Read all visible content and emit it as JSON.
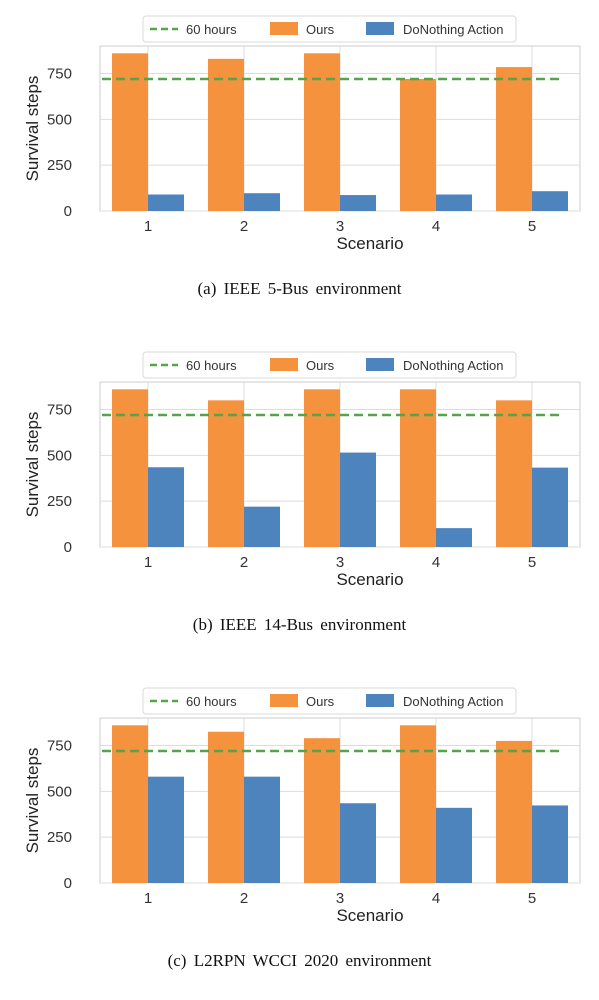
{
  "colors": {
    "ours": "#f5923e",
    "donothing": "#4d84be",
    "threshold": "#55a34a",
    "grid": "#dddddd",
    "frame": "#cccccc"
  },
  "chart_data": [
    {
      "type": "bar",
      "caption": "(a) IEEE 5-Bus environment",
      "xlabel": "Scenario",
      "ylabel": "Survival steps",
      "categories": [
        "1",
        "2",
        "3",
        "4",
        "5"
      ],
      "yticks": [
        0,
        250,
        500,
        750
      ],
      "ylim": [
        0,
        900
      ],
      "grid": true,
      "legend_position": "top-center",
      "reference_line": {
        "name": "60 hours",
        "value": 720
      },
      "series": [
        {
          "name": "Ours",
          "values": [
            860,
            830,
            860,
            720,
            785
          ]
        },
        {
          "name": "DoNothing Action",
          "values": [
            90,
            97,
            87,
            90,
            108
          ]
        }
      ]
    },
    {
      "type": "bar",
      "caption": "(b) IEEE 14-Bus environment",
      "xlabel": "Scenario",
      "ylabel": "Survival steps",
      "categories": [
        "1",
        "2",
        "3",
        "4",
        "5"
      ],
      "yticks": [
        0,
        250,
        500,
        750
      ],
      "ylim": [
        0,
        900
      ],
      "grid": true,
      "legend_position": "top-center",
      "reference_line": {
        "name": "60 hours",
        "value": 720
      },
      "series": [
        {
          "name": "Ours",
          "values": [
            860,
            800,
            860,
            860,
            800
          ]
        },
        {
          "name": "DoNothing Action",
          "values": [
            435,
            220,
            515,
            103,
            433
          ]
        }
      ]
    },
    {
      "type": "bar",
      "caption": "(c) L2RPN WCCI 2020 environment",
      "xlabel": "Scenario",
      "ylabel": "Survival steps",
      "categories": [
        "1",
        "2",
        "3",
        "4",
        "5"
      ],
      "yticks": [
        0,
        250,
        500,
        750
      ],
      "ylim": [
        0,
        900
      ],
      "grid": true,
      "legend_position": "top-center",
      "reference_line": {
        "name": "60 hours",
        "value": 720
      },
      "series": [
        {
          "name": "Ours",
          "values": [
            860,
            825,
            790,
            860,
            775
          ]
        },
        {
          "name": "DoNothing Action",
          "values": [
            580,
            580,
            435,
            410,
            423
          ]
        }
      ]
    }
  ]
}
